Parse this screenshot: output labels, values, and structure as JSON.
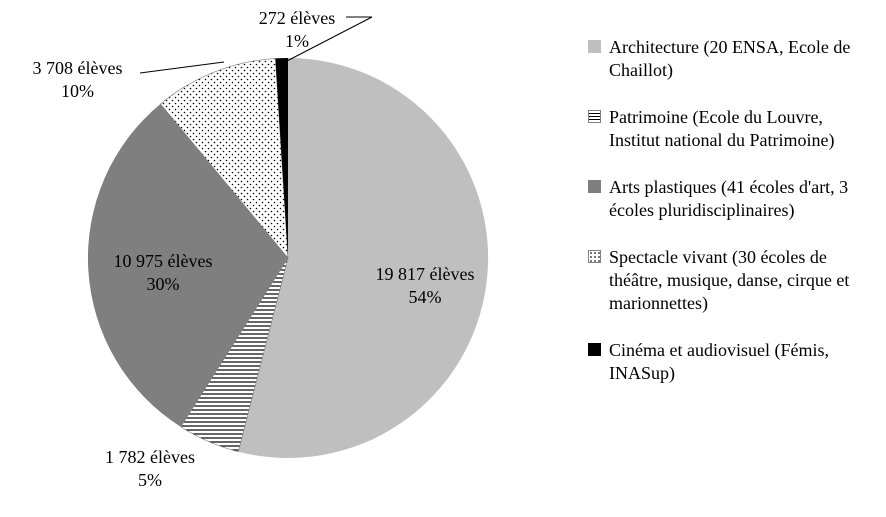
{
  "chart_data": {
    "type": "pie",
    "title": "",
    "legend_position": "right",
    "start_angle_deg": -90,
    "direction": "clockwise",
    "grid": false,
    "units": "élèves",
    "slices": [
      {
        "id": "architecture",
        "label": "Architecture (20 ENSA, Ecole de Chaillot)",
        "value": 19817,
        "pct": 54,
        "data_label": "19 817 élèves",
        "pct_label": "54%",
        "fill": "solid",
        "color": "#bfbfbf"
      },
      {
        "id": "patrimoine",
        "label": "Patrimoine (Ecole du Louvre, Institut national du Patrimoine)",
        "value": 1782,
        "pct": 5,
        "data_label": "1 782 élèves",
        "pct_label": "5%",
        "fill": "hatch-horizontal",
        "color": "#000000"
      },
      {
        "id": "arts-plastiques",
        "label": "Arts plastiques (41 écoles d'art, 3 écoles pluridisciplinaires)",
        "value": 10975,
        "pct": 30,
        "data_label": "10 975 élèves",
        "pct_label": "30%",
        "fill": "solid",
        "color": "#7f7f7f"
      },
      {
        "id": "spectacle-vivant",
        "label": "Spectacle vivant (30 écoles de théâtre, musique, danse, cirque et marionnettes)",
        "value": 3708,
        "pct": 10,
        "data_label": "3 708 élèves",
        "pct_label": "10%",
        "fill": "dots",
        "color": "#000000"
      },
      {
        "id": "cinema",
        "label": "Cinéma et audiovisuel (Fémis, INASup)",
        "value": 272,
        "pct": 1,
        "data_label": "272 élèves",
        "pct_label": "1%",
        "fill": "solid",
        "color": "#000000"
      }
    ]
  }
}
